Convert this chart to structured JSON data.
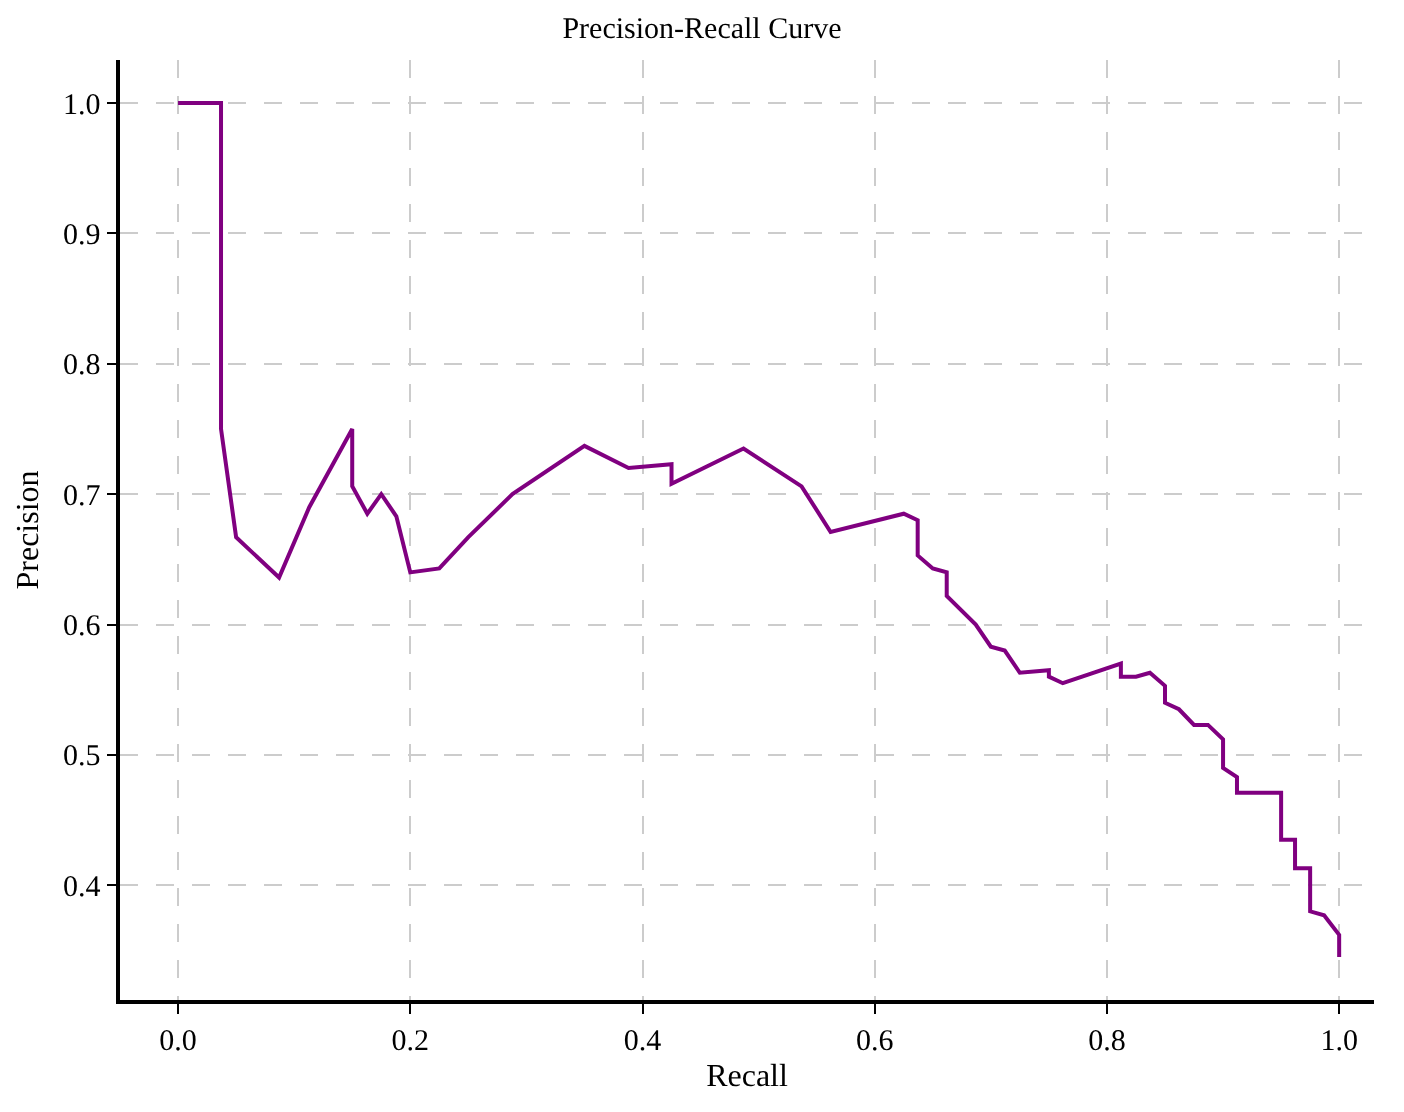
{
  "chart_data": {
    "type": "line",
    "title": "Precision-Recall Curve",
    "xlabel": "Recall",
    "ylabel": "Precision",
    "x": [
      0,
      0.037,
      0.037,
      0.05,
      0.087,
      0.113,
      0.15,
      0.15,
      0.163,
      0.175,
      0.188,
      0.2,
      0.225,
      0.25,
      0.288,
      0.35,
      0.388,
      0.425,
      0.425,
      0.487,
      0.537,
      0.562,
      0.625,
      0.637,
      0.637,
      0.65,
      0.662,
      0.662,
      0.687,
      0.7,
      0.712,
      0.725,
      0.75,
      0.75,
      0.762,
      0.812,
      0.812,
      0.825,
      0.837,
      0.85,
      0.85,
      0.862,
      0.875,
      0.887,
      0.9,
      0.9,
      0.912,
      0.912,
      0.95,
      0.95,
      0.962,
      0.962,
      0.975,
      0.975,
      0.987,
      1.0,
      1.0
    ],
    "series": [
      {
        "color": "#800080",
        "values": [
          1.0,
          1.0,
          0.75,
          0.667,
          0.636,
          0.69,
          0.75,
          0.706,
          0.685,
          0.7,
          0.683,
          0.64,
          0.643,
          0.667,
          0.7,
          0.737,
          0.72,
          0.723,
          0.708,
          0.735,
          0.706,
          0.671,
          0.685,
          0.68,
          0.653,
          0.643,
          0.64,
          0.622,
          0.6,
          0.583,
          0.58,
          0.563,
          0.565,
          0.56,
          0.555,
          0.57,
          0.56,
          0.56,
          0.563,
          0.553,
          0.54,
          0.535,
          0.523,
          0.523,
          0.512,
          0.49,
          0.483,
          0.471,
          0.471,
          0.435,
          0.435,
          0.413,
          0.413,
          0.38,
          0.377,
          0.362,
          0.345
        ]
      }
    ],
    "xlim": [
      -0.05,
      1.03
    ],
    "ylim": [
      0.312,
      1.033
    ],
    "xticks": [
      {
        "value": 0,
        "label": "0.0"
      },
      0.2,
      0.4,
      0.6,
      0.8,
      {
        "value": 1,
        "label": "1.0"
      }
    ],
    "yticks": [
      0.4,
      0.5,
      0.6,
      0.7,
      0.8,
      0.9,
      {
        "value": 1,
        "label": "1.0"
      }
    ],
    "grid": true,
    "legend": false,
    "marker": "none",
    "line_style": "solid"
  }
}
